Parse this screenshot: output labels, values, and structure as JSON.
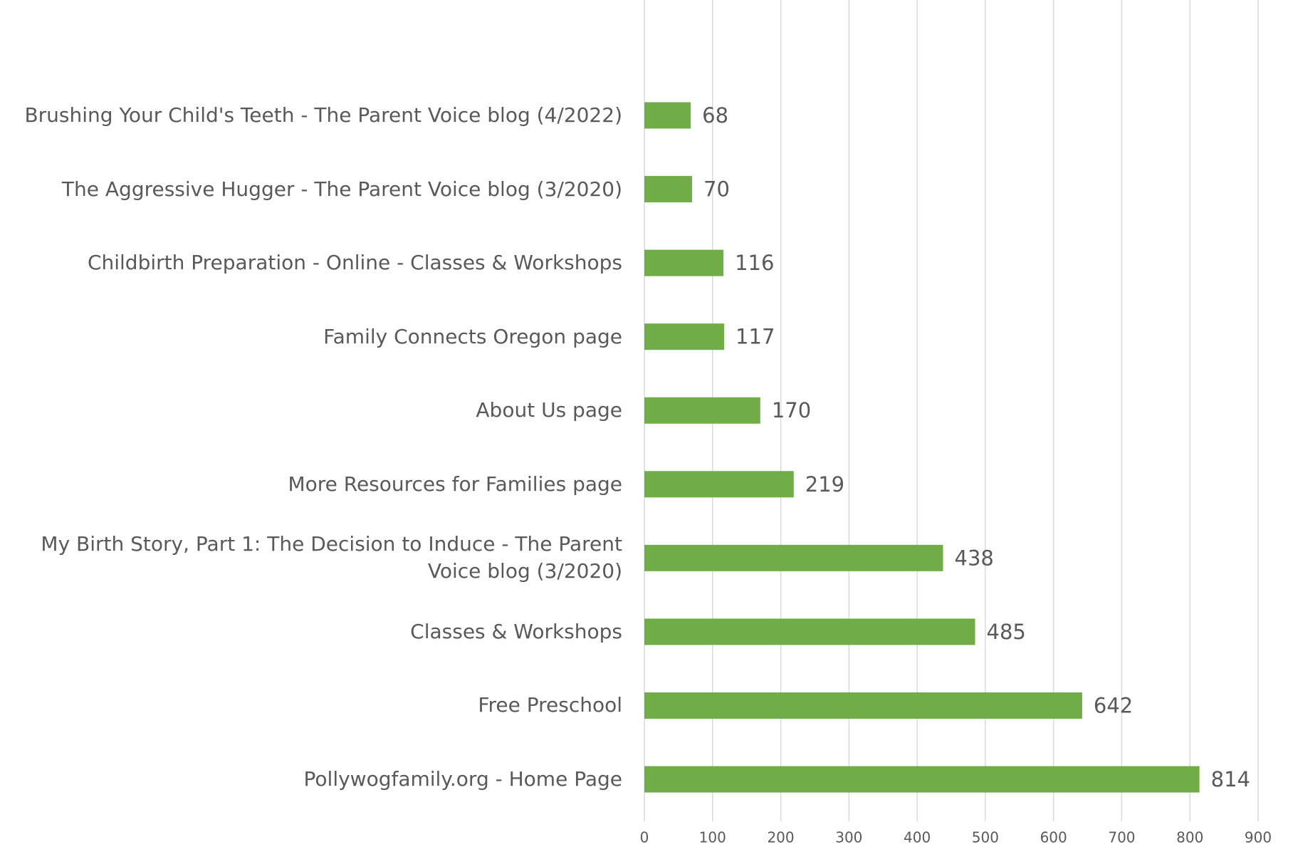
{
  "chart_data": {
    "type": "bar",
    "orientation": "horizontal",
    "categories": [
      "Brushing Your Child's Teeth - The Parent Voice blog (4/2022)",
      "The Aggressive Hugger - The Parent Voice blog (3/2020)",
      "Childbirth Preparation - Online - Classes & Workshops",
      "Family Connects Oregon page",
      "About Us page",
      "More Resources for Families page",
      "My Birth Story, Part 1: The Decision to Induce - The Parent Voice blog (3/2020)",
      "Classes & Workshops",
      "Free Preschool",
      "Pollywogfamily.org - Home Page"
    ],
    "values": [
      68,
      70,
      116,
      117,
      170,
      219,
      438,
      485,
      642,
      814
    ],
    "color": "#70ad47",
    "xlim": [
      0,
      900
    ],
    "xticks": [
      0,
      100,
      200,
      300,
      400,
      500,
      600,
      700,
      800,
      900
    ],
    "grid": true
  }
}
